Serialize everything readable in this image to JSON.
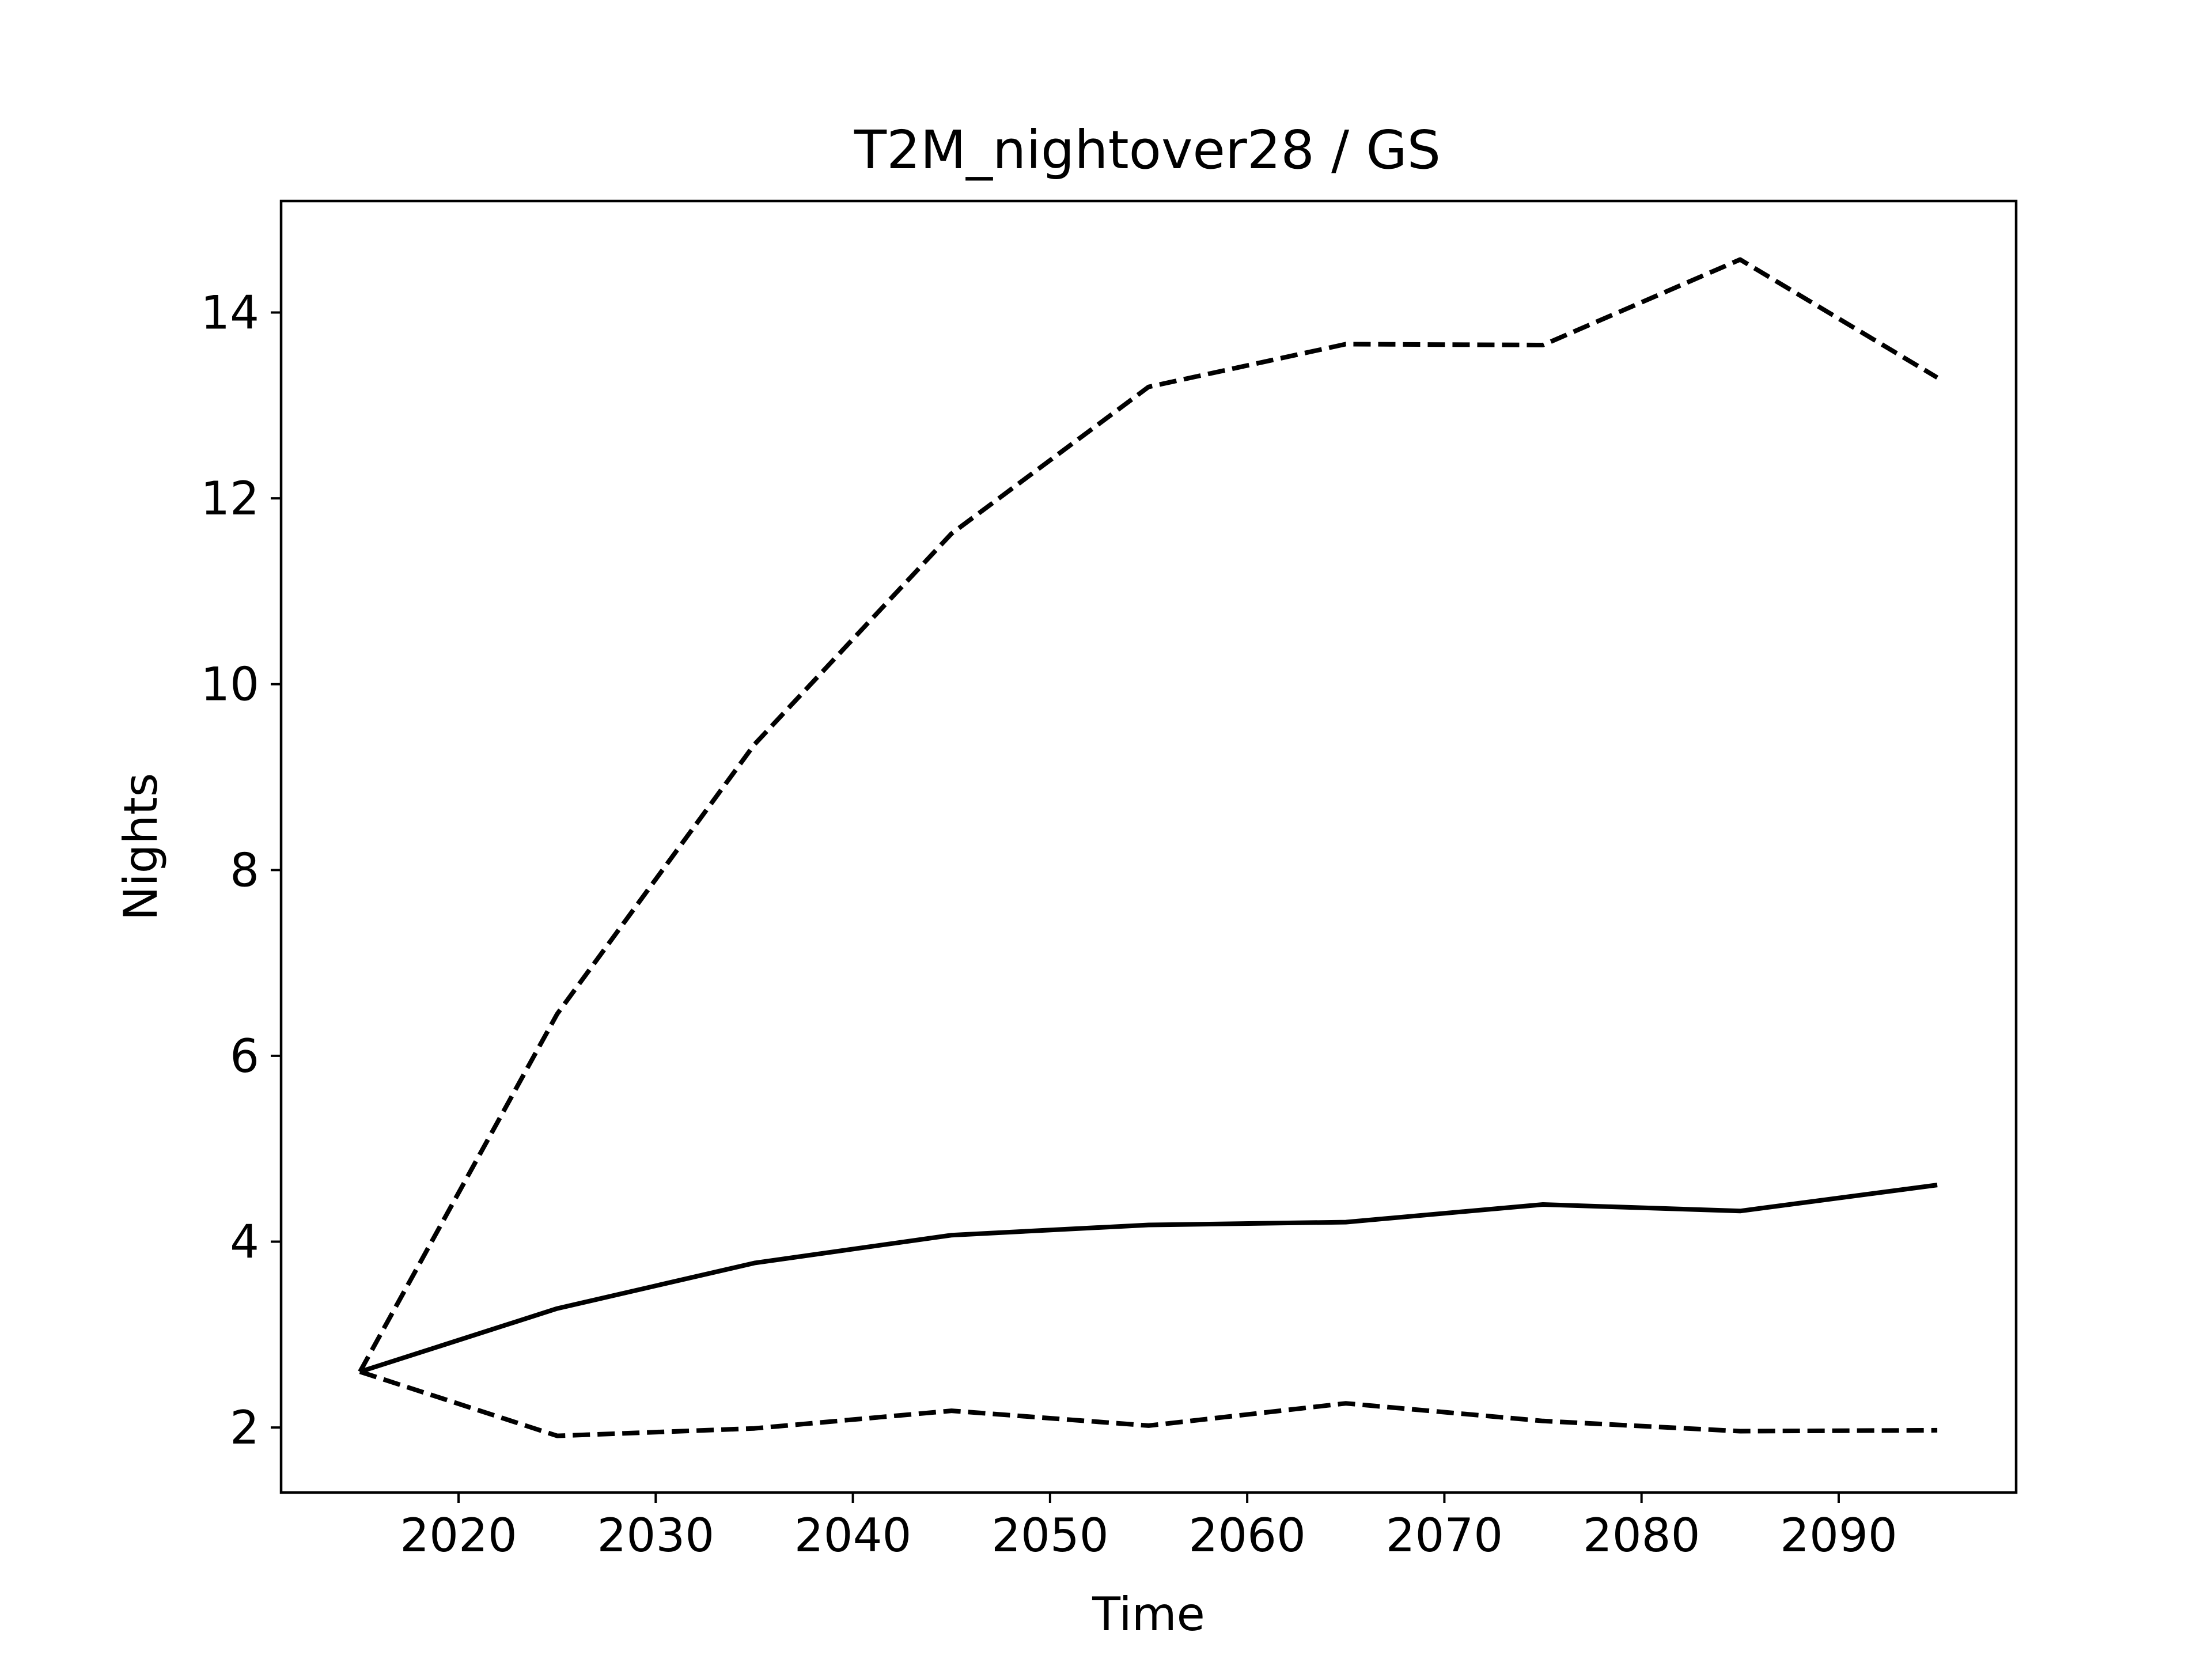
{
  "chart_data": {
    "type": "line",
    "title": "T2M_nightover28 / GS",
    "xlabel": "Time",
    "ylabel": "Nights",
    "xlim": [
      2011,
      2099
    ],
    "ylim": [
      1.3,
      15.2
    ],
    "xticks": [
      2020,
      2030,
      2040,
      2050,
      2060,
      2070,
      2080,
      2090
    ],
    "yticks": [
      2,
      4,
      6,
      8,
      10,
      12,
      14
    ],
    "grid": false,
    "legend": "none",
    "x": [
      2015,
      2025,
      2035,
      2045,
      2055,
      2065,
      2075,
      2085,
      2095
    ],
    "series": [
      {
        "style": "solid",
        "color": "#000000",
        "values": [
          2.6,
          3.28,
          3.77,
          4.07,
          4.18,
          4.21,
          4.4,
          4.33,
          4.61
        ]
      },
      {
        "style": "dashed",
        "color": "#000000",
        "values": [
          2.6,
          6.45,
          9.35,
          11.62,
          13.2,
          13.66,
          13.65,
          14.57,
          13.3
        ]
      },
      {
        "style": "dashed",
        "color": "#000000",
        "values": [
          2.6,
          1.91,
          1.99,
          2.18,
          2.02,
          2.26,
          2.07,
          1.96,
          1.97
        ]
      }
    ]
  }
}
